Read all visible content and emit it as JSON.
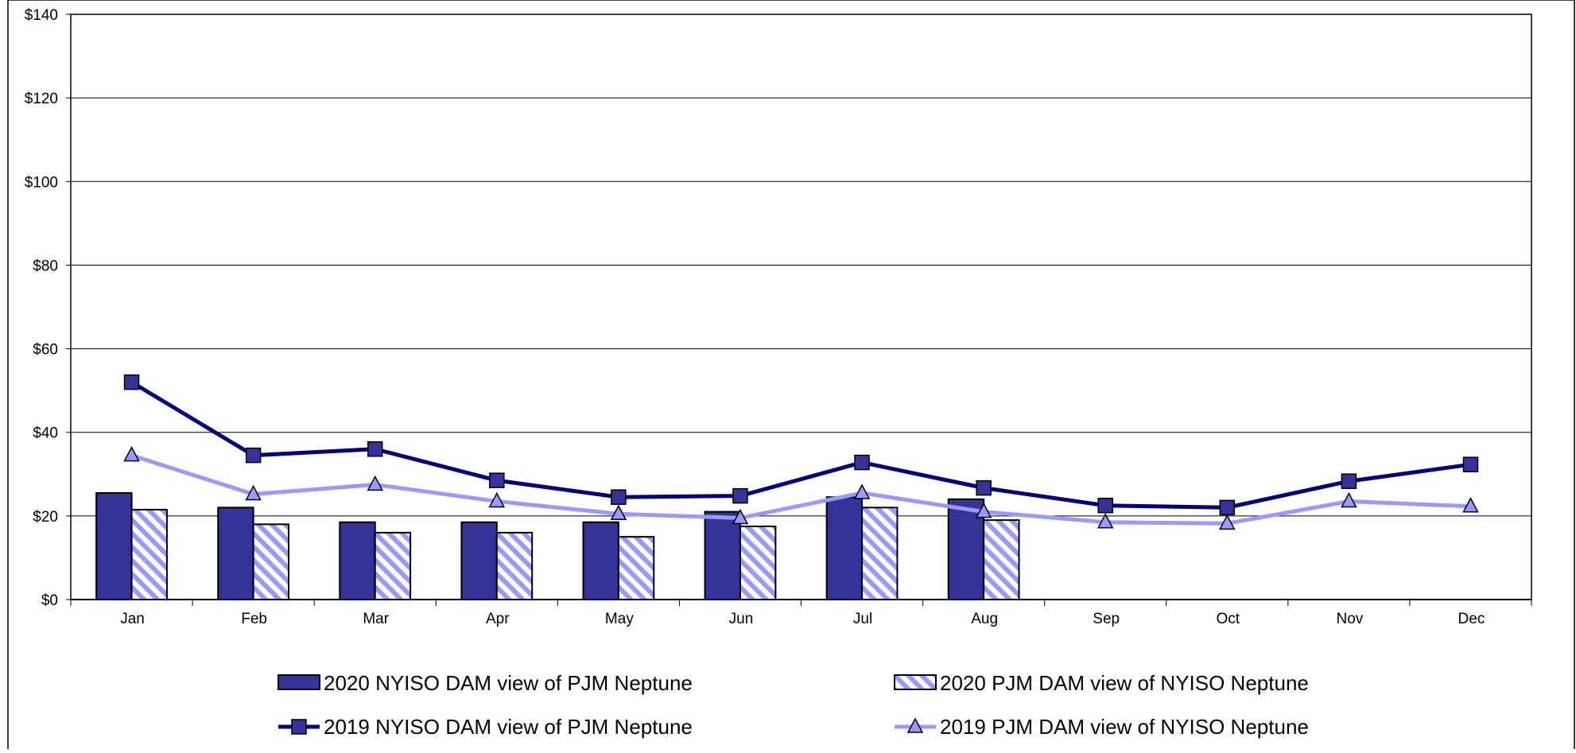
{
  "chart_data": {
    "type": "bar",
    "categories": [
      "Jan",
      "Feb",
      "Mar",
      "Apr",
      "May",
      "Jun",
      "Jul",
      "Aug",
      "Sep",
      "Oct",
      "Nov",
      "Dec"
    ],
    "ylim": [
      0,
      140
    ],
    "yticks": [
      0,
      20,
      40,
      60,
      80,
      100,
      120,
      140
    ],
    "ytick_labels": [
      "$0",
      "$20",
      "$40",
      "$60",
      "$80",
      "$100",
      "$120",
      "$140"
    ],
    "grid": true,
    "legend_position": "bottom",
    "series": [
      {
        "name": "2020 NYISO DAM view of PJM Neptune",
        "kind": "bar",
        "pattern": "solid",
        "color": "#333399",
        "values": [
          25.5,
          22,
          18.5,
          18.5,
          18.5,
          21,
          24.5,
          24,
          null,
          null,
          null,
          null
        ]
      },
      {
        "name": "2020 PJM DAM view of NYISO Neptune",
        "kind": "bar",
        "pattern": "diagonal-hatch",
        "color": "#9999ff",
        "values": [
          21.5,
          18,
          16,
          16,
          15,
          17.5,
          22,
          19,
          null,
          null,
          null,
          null
        ]
      },
      {
        "name": "2019 NYISO DAM view of PJM Neptune",
        "kind": "line",
        "marker": "square",
        "color": "#000080",
        "values": [
          52,
          34.5,
          36,
          28.5,
          24.5,
          24.8,
          32.8,
          26.7,
          22.5,
          22,
          28.3,
          32.3
        ]
      },
      {
        "name": "2019 PJM DAM view of NYISO Neptune",
        "kind": "line",
        "marker": "triangle",
        "color": "#9999ff",
        "values": [
          34.5,
          25.2,
          27.5,
          23.5,
          20.5,
          19.5,
          25.5,
          21,
          18.5,
          18.2,
          23.5,
          22.3
        ]
      }
    ]
  }
}
